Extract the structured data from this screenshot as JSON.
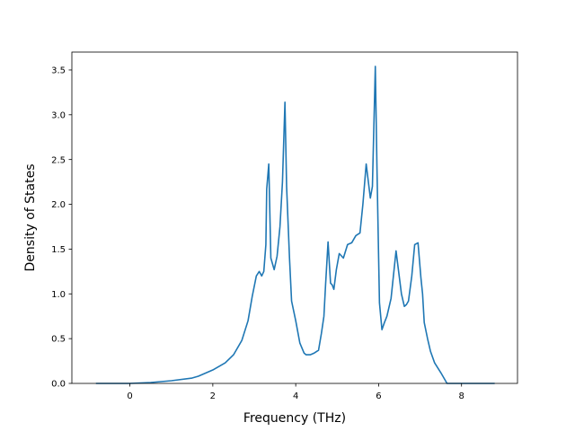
{
  "chart_data": {
    "type": "line",
    "title": "",
    "xlabel": "Frequency (THz)",
    "ylabel": "Density of States",
    "xlim": [
      -1.4,
      9.35
    ],
    "ylim": [
      0,
      3.7
    ],
    "xticks": [
      "0",
      "2",
      "4",
      "6",
      "8"
    ],
    "yticks": [
      "0.0",
      "0.5",
      "1.0",
      "1.5",
      "2.0",
      "2.5",
      "3.0",
      "3.5"
    ],
    "grid": false,
    "series": [
      {
        "color": "#1f77b4",
        "x": [
          -0.82,
          0.0,
          0.5,
          1.0,
          1.5,
          1.65,
          2.0,
          2.3,
          2.5,
          2.7,
          2.85,
          2.95,
          3.05,
          3.12,
          3.18,
          3.23,
          3.28,
          3.3,
          3.35,
          3.4,
          3.48,
          3.55,
          3.62,
          3.68,
          3.74,
          3.78,
          3.85,
          3.9,
          4.0,
          4.1,
          4.2,
          4.25,
          4.35,
          4.45,
          4.55,
          4.62,
          4.68,
          4.72,
          4.78,
          4.84,
          4.88,
          4.92,
          4.98,
          5.05,
          5.15,
          5.25,
          5.35,
          5.45,
          5.55,
          5.62,
          5.7,
          5.8,
          5.85,
          5.92,
          5.96,
          6.0,
          6.02,
          6.08,
          6.14,
          6.2,
          6.3,
          6.42,
          6.55,
          6.62,
          6.67,
          6.72,
          6.8,
          6.87,
          6.95,
          7.02,
          7.06,
          7.1,
          7.18,
          7.25,
          7.35,
          7.5,
          7.65,
          7.8,
          7.92,
          8.0,
          8.8
        ],
        "y": [
          0.0,
          0.0,
          0.01,
          0.03,
          0.06,
          0.08,
          0.15,
          0.23,
          0.32,
          0.48,
          0.7,
          0.97,
          1.2,
          1.25,
          1.2,
          1.25,
          1.55,
          2.17,
          2.45,
          1.4,
          1.27,
          1.42,
          1.75,
          2.25,
          3.14,
          2.2,
          1.4,
          0.92,
          0.7,
          0.45,
          0.34,
          0.32,
          0.32,
          0.34,
          0.37,
          0.56,
          0.75,
          1.1,
          1.58,
          1.12,
          1.1,
          1.05,
          1.27,
          1.45,
          1.4,
          1.55,
          1.57,
          1.65,
          1.68,
          2.0,
          2.45,
          2.07,
          2.2,
          3.54,
          2.4,
          1.4,
          0.9,
          0.6,
          0.68,
          0.75,
          0.95,
          1.48,
          1.0,
          0.86,
          0.88,
          0.92,
          1.2,
          1.55,
          1.57,
          1.18,
          1.0,
          0.68,
          0.5,
          0.36,
          0.23,
          0.12,
          0.0,
          0.0,
          0.0,
          0.0,
          0.0
        ]
      }
    ]
  }
}
